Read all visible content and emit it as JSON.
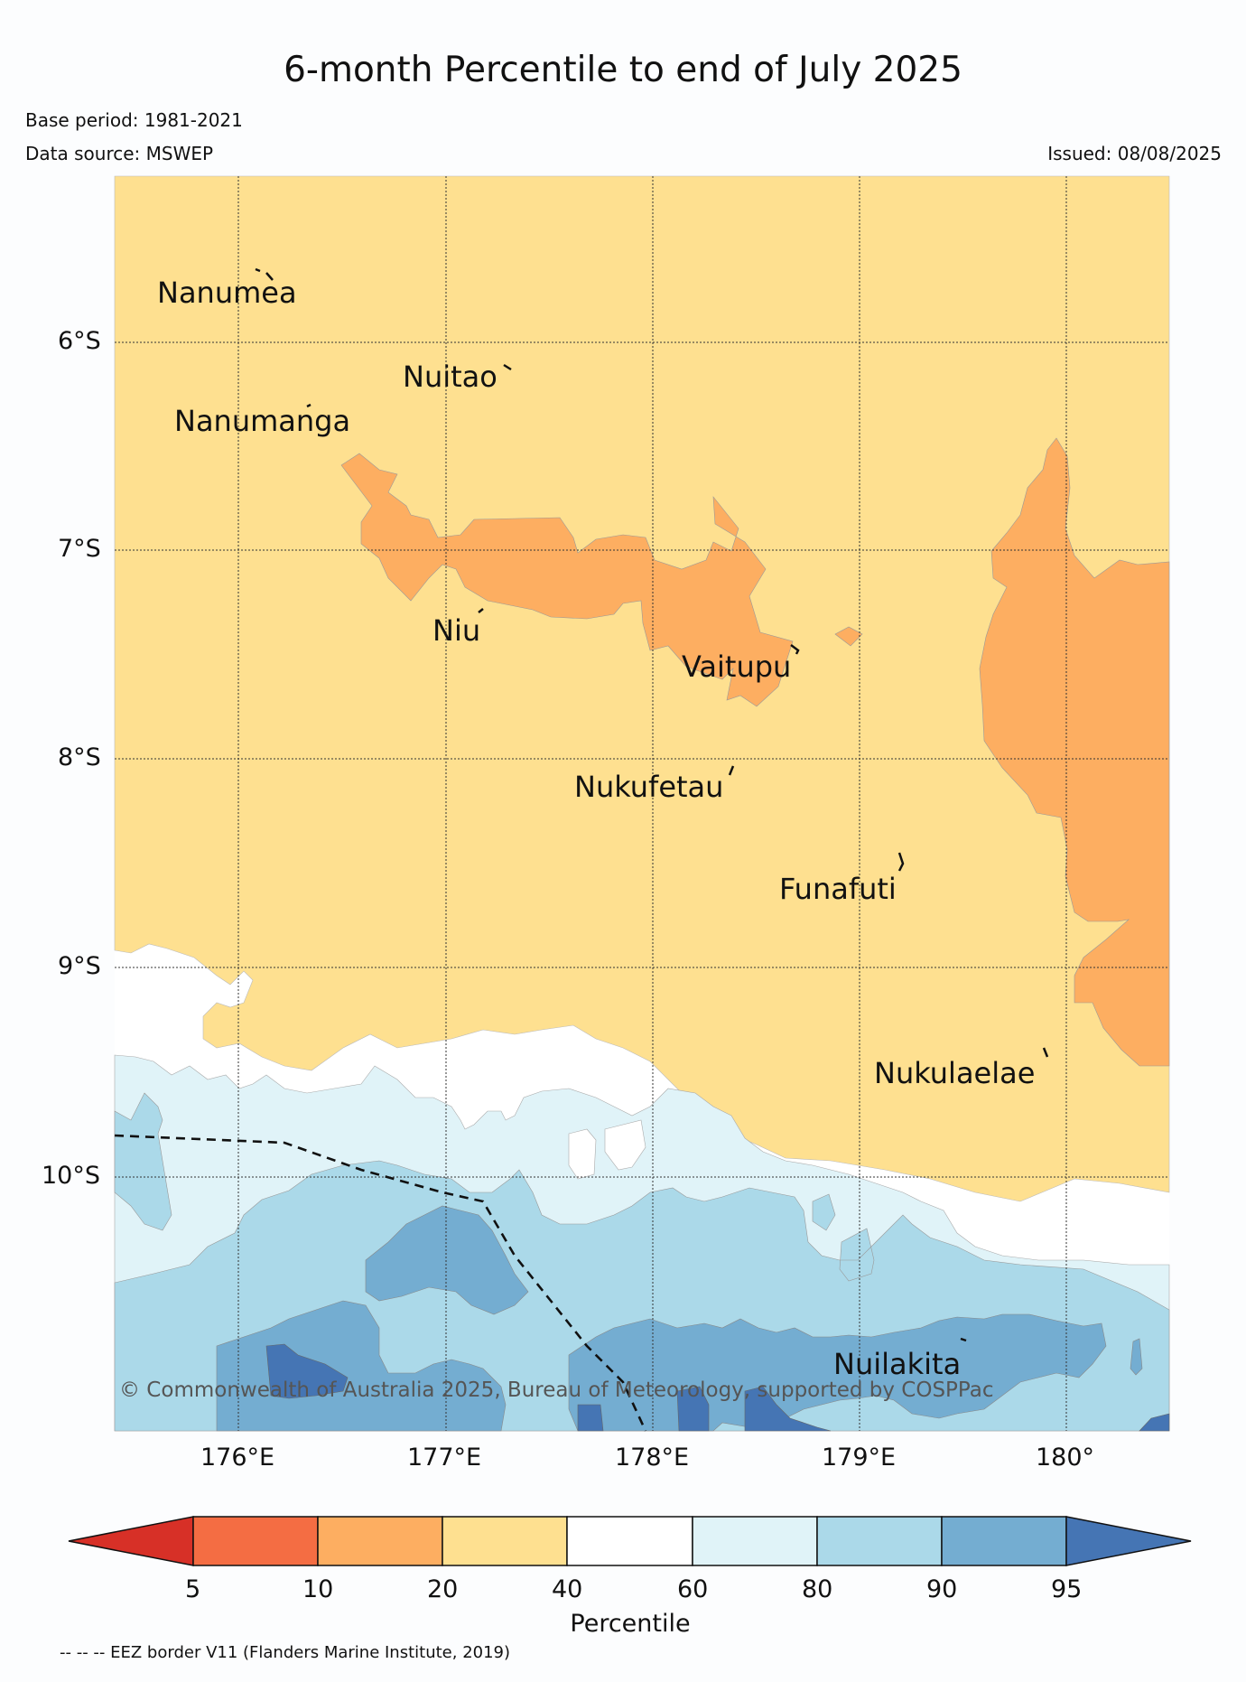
{
  "title": "6-month Percentile to end of July 2025",
  "base_period": "Base period: 1981-2021",
  "data_source": "Data source: MSWEP",
  "issued": "Issued: 08/08/2025",
  "lat_ticks": [
    "6°S",
    "7°S",
    "8°S",
    "9°S",
    "10°S"
  ],
  "lon_ticks": [
    "176°E",
    "177°E",
    "178°E",
    "179°E",
    "180°"
  ],
  "islands": [
    "Nanumea",
    "Nuitao",
    "Nanumanga",
    "Niu",
    "Vaitupu",
    "Nukufetau",
    "Funafuti",
    "Nukulaelae",
    "Nuilakita"
  ],
  "credit": "© Commonwealth of Australia 2025, Bureau of Meteorology, supported by COSPPac",
  "colorbar": {
    "label": "Percentile",
    "ticks": [
      "5",
      "10",
      "20",
      "40",
      "60",
      "80",
      "90",
      "95"
    ],
    "colors": [
      "#d73027",
      "#f46d43",
      "#fdae61",
      "#fee090",
      "#ffffff",
      "#e0f3f8",
      "#abd9e9",
      "#74add1",
      "#4575b4"
    ]
  },
  "footer": "-- -- -- EEZ border V11 (Flanders Marine Institute, 2019)"
}
